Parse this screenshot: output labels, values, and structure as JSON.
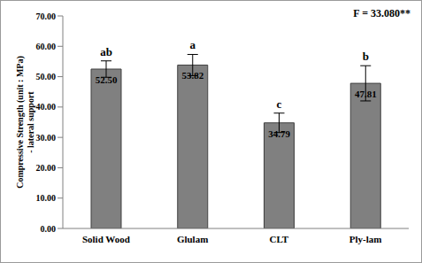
{
  "chart_data": {
    "type": "bar",
    "categories": [
      "Solid Wood",
      "Glulam",
      "CLT",
      "Ply-lam"
    ],
    "values": [
      52.5,
      53.82,
      34.79,
      47.81
    ],
    "value_labels": [
      "52.50",
      "53.82",
      "34.79",
      "47.81"
    ],
    "errors": [
      2.7,
      3.5,
      3.2,
      5.8
    ],
    "group_letters": [
      "ab",
      "a",
      "c",
      "b"
    ],
    "color": "#808080",
    "ylabel": "Compressive Strength (unit : MPa)\n- lateral support",
    "annotation": "F = 33.080**",
    "ylim": [
      0,
      70
    ],
    "yticks": [
      {
        "value": 0,
        "label": "0.00"
      },
      {
        "value": 10,
        "label": "10.00"
      },
      {
        "value": 20,
        "label": "20.00"
      },
      {
        "value": 30,
        "label": "30.00"
      },
      {
        "value": 40,
        "label": "40.00"
      },
      {
        "value": 50,
        "label": "50.00"
      },
      {
        "value": 60,
        "label": "60.00"
      },
      {
        "value": 70,
        "label": "70.00"
      }
    ],
    "data_labels": true,
    "grid": false
  }
}
